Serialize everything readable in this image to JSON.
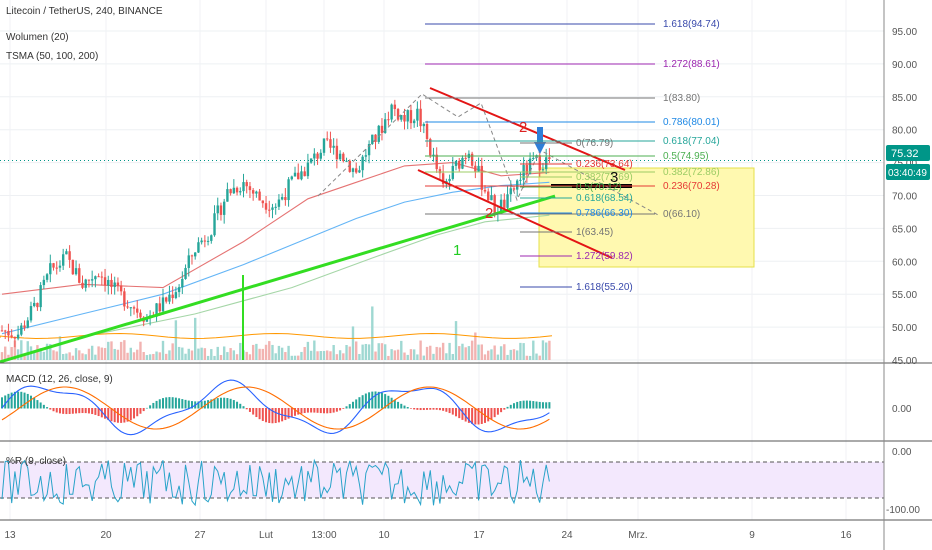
{
  "header": {
    "title": "Litecoin / TetherUS, 240, BINANCE",
    "indicators": [
      "Wolumen (20)",
      "TSMA (50, 100, 200)"
    ]
  },
  "price_axis": {
    "ticks": [
      95,
      90,
      85,
      80,
      75,
      70,
      65,
      60,
      55,
      50,
      45
    ],
    "tick_labels": [
      "95.00",
      "90.00",
      "85.00",
      "80.00",
      "75.00",
      "70.00",
      "65.00",
      "60.00",
      "55.00",
      "50.00",
      "45.00"
    ],
    "current_price": "75.32",
    "countdown": "03:40:49"
  },
  "time_axis": {
    "labels": [
      "13",
      "20",
      "27",
      "Lut",
      "13:00",
      "10",
      "17",
      "24",
      "Mrz.",
      "9",
      "16"
    ]
  },
  "macd": {
    "title": "MACD (12, 26, close, 9)",
    "tick_label": "0.00"
  },
  "wr": {
    "title": "%R (9, close)",
    "tick_labels": [
      "0.00",
      "-100.00"
    ]
  },
  "colors": {
    "up": "#26a69a",
    "down": "#ef5350",
    "ma50": "#e57373",
    "ma100": "#64b5f6",
    "ma200": "#a5d6a7",
    "trend_green": "#33dd22",
    "channel_red": "#e31515",
    "current_price_bg": "#009688",
    "zone_fill": "#fff9b0"
  },
  "annotations": {
    "label_1": "1",
    "label_2a": "2",
    "label_2b": "2",
    "label_3": "3"
  },
  "fib_sets": [
    {
      "levels": [
        {
          "label": "1.618(94.74)",
          "color": "#3949ab"
        },
        {
          "label": "1.272(88.61)",
          "color": "#9c27b0"
        },
        {
          "label": "1(83.80)",
          "color": "#757575"
        },
        {
          "label": "0.786(80.01)",
          "color": "#1e88e5"
        },
        {
          "label": "0.618(77.04)",
          "color": "#26a69a"
        },
        {
          "label": "0.5(74.95)",
          "color": "#4caf50"
        },
        {
          "label": "0.382(72.86)",
          "color": "#9ccc65"
        },
        {
          "label": "0.236(70.28)",
          "color": "#e53935"
        },
        {
          "label": "0(66.10)",
          "color": "#757575"
        }
      ]
    },
    {
      "levels": [
        {
          "label": "0(76.79)",
          "color": "#757575"
        },
        {
          "label": "0.236(73.64)",
          "color": "#e53935"
        },
        {
          "label": "0.382(71.69)",
          "color": "#9ccc65"
        },
        {
          "label": "0.5(70.12)",
          "color": "#4caf50"
        },
        {
          "label": "0.618(68.54)",
          "color": "#26a69a"
        },
        {
          "label": "0.786(66.30)",
          "color": "#1e88e5"
        },
        {
          "label": "1(63.45)",
          "color": "#757575"
        },
        {
          "label": "1.272(59.82)",
          "color": "#9c27b0"
        },
        {
          "label": "1.618(55.20)",
          "color": "#3949ab"
        }
      ]
    }
  ],
  "chart_data": {
    "type": "candlestick",
    "title": "Litecoin / TetherUS, 240, BINANCE",
    "ylim": [
      43.5,
      98
    ],
    "price_line": 75.32,
    "close_path": [
      {
        "i": 0,
        "p": 49.5
      },
      {
        "i": 5,
        "p": 49.0
      },
      {
        "i": 10,
        "p": 53.0
      },
      {
        "i": 15,
        "p": 58.5
      },
      {
        "i": 20,
        "p": 60.5
      },
      {
        "i": 25,
        "p": 56.5
      },
      {
        "i": 30,
        "p": 58.5
      },
      {
        "i": 35,
        "p": 55.5
      },
      {
        "i": 40,
        "p": 53.5
      },
      {
        "i": 45,
        "p": 51.5
      },
      {
        "i": 50,
        "p": 53.5
      },
      {
        "i": 55,
        "p": 56.5
      },
      {
        "i": 60,
        "p": 62.0
      },
      {
        "i": 65,
        "p": 65.0
      },
      {
        "i": 70,
        "p": 70.5
      },
      {
        "i": 75,
        "p": 72.0
      },
      {
        "i": 80,
        "p": 69.5
      },
      {
        "i": 85,
        "p": 68.5
      },
      {
        "i": 90,
        "p": 72.0
      },
      {
        "i": 95,
        "p": 74.5
      },
      {
        "i": 100,
        "p": 77.5
      },
      {
        "i": 105,
        "p": 76.5
      },
      {
        "i": 110,
        "p": 73.5
      },
      {
        "i": 113,
        "p": 76.5
      },
      {
        "i": 117,
        "p": 79.5
      },
      {
        "i": 121,
        "p": 83.5
      },
      {
        "i": 125,
        "p": 81.5
      },
      {
        "i": 129,
        "p": 82.5
      },
      {
        "i": 133,
        "p": 77.0
      },
      {
        "i": 137,
        "p": 71.0
      },
      {
        "i": 141,
        "p": 74.5
      },
      {
        "i": 145,
        "p": 77.0
      },
      {
        "i": 149,
        "p": 72.0
      },
      {
        "i": 153,
        "p": 68.0
      },
      {
        "i": 157,
        "p": 69.0
      },
      {
        "i": 161,
        "p": 73.0
      },
      {
        "i": 165,
        "p": 75.0
      },
      {
        "i": 170,
        "p": 75.3
      }
    ],
    "ma_series": [
      {
        "key": "ma50",
        "path": [
          [
            0,
            55
          ],
          [
            25,
            56.5
          ],
          [
            50,
            56
          ],
          [
            75,
            63
          ],
          [
            95,
            69.5
          ],
          [
            110,
            72
          ],
          [
            125,
            74.5
          ],
          [
            140,
            75
          ],
          [
            155,
            73
          ],
          [
            170,
            73.5
          ]
        ]
      },
      {
        "key": "ma100",
        "path": [
          [
            0,
            49
          ],
          [
            25,
            52
          ],
          [
            50,
            55
          ],
          [
            75,
            59.5
          ],
          [
            95,
            63.5
          ],
          [
            110,
            66.5
          ],
          [
            125,
            69
          ],
          [
            140,
            70.5
          ],
          [
            155,
            71.5
          ],
          [
            170,
            72
          ]
        ]
      },
      {
        "key": "ma200",
        "path": [
          [
            30,
            49
          ],
          [
            60,
            52
          ],
          [
            90,
            56
          ],
          [
            115,
            60.5
          ],
          [
            135,
            64
          ],
          [
            150,
            66
          ],
          [
            170,
            67
          ]
        ]
      }
    ]
  }
}
